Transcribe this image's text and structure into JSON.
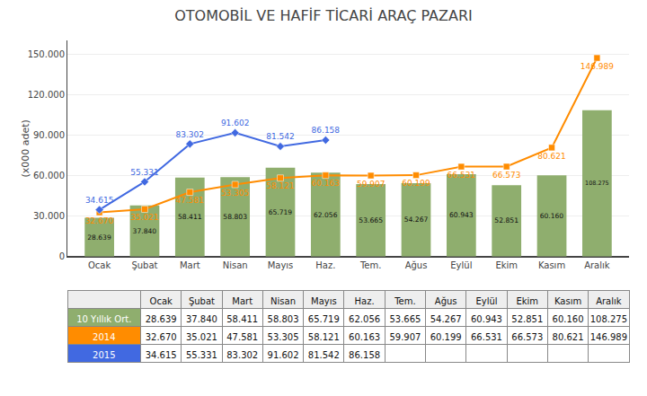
{
  "chart_data": {
    "type": "bar",
    "title": "OTOMOBİL VE HAFİF TİCARİ ARAÇ PAZARI",
    "ylabel": "(x000 adet)",
    "categories": [
      "Ocak",
      "Şubat",
      "Mart",
      "Nisan",
      "Mayıs",
      "Haz.",
      "Tem.",
      "Ağus",
      "Eylül",
      "Ekim",
      "Kasım",
      "Aralık"
    ],
    "series": [
      {
        "name": "10 Yıllık Ort.",
        "type": "bar",
        "color": "#8fae6e",
        "values": [
          28639,
          37840,
          58411,
          58803,
          65719,
          62056,
          53665,
          54267,
          60943,
          52851,
          60160,
          108275
        ],
        "value_labels": [
          "28.639",
          "37.840",
          "58.411",
          "58.803",
          "65.719",
          "62.056",
          "53.665",
          "54.267",
          "60.943",
          "52.851",
          "60.160",
          "108.275"
        ]
      },
      {
        "name": "2014",
        "type": "line",
        "color": "#ff8c00",
        "marker": "square",
        "values": [
          32670,
          35021,
          47581,
          53305,
          58121,
          60163,
          59907,
          60199,
          66531,
          66573,
          80621,
          146989
        ],
        "value_labels": [
          "32.670",
          "35.021",
          "47.581",
          "53.305",
          "58.121",
          "60.163",
          "59.907",
          "60.199",
          "66.531",
          "66.573",
          "80.621",
          "146.989"
        ]
      },
      {
        "name": "2015",
        "type": "line",
        "color": "#4169e1",
        "marker": "diamond",
        "values": [
          34615,
          55331,
          83302,
          91602,
          81542,
          86158,
          null,
          null,
          null,
          null,
          null,
          null
        ],
        "value_labels": [
          "34.615",
          "55.331",
          "83.302",
          "91.602",
          "81.542",
          "86.158",
          null,
          null,
          null,
          null,
          null,
          null
        ]
      }
    ],
    "ylim": [
      0,
      160000
    ],
    "yticks": [
      0,
      {
        "value": 30000,
        "label": "30.000"
      },
      {
        "value": 60000,
        "label": "60.000"
      },
      {
        "value": 90000,
        "label": "90.000"
      },
      {
        "value": 120000,
        "label": "120.000"
      },
      {
        "value": 150000,
        "label": "150.000"
      }
    ],
    "grid": true,
    "data_labels": true
  }
}
